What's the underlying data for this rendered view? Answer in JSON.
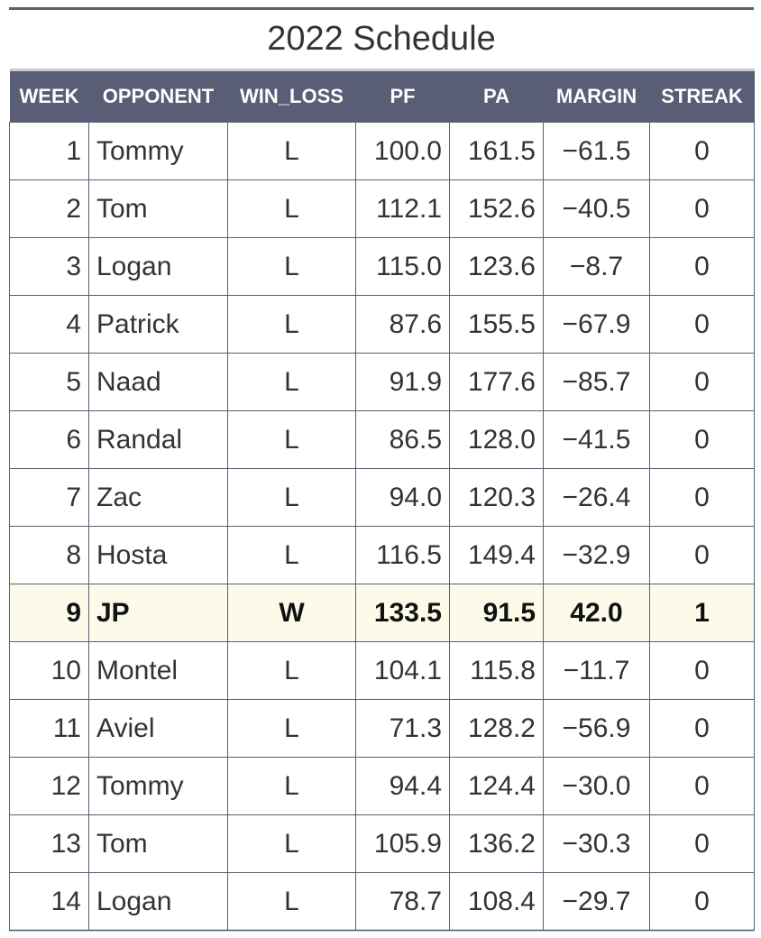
{
  "title": "2022 Schedule",
  "columns": [
    "WEEK",
    "OPPONENT",
    "WIN_LOSS",
    "PF",
    "PA",
    "MARGIN",
    "STREAK"
  ],
  "rows": [
    {
      "week": "1",
      "opponent": "Tommy",
      "win_loss": "L",
      "pf": "100.0",
      "pa": "161.5",
      "margin": "−61.5",
      "streak": "0"
    },
    {
      "week": "2",
      "opponent": "Tom",
      "win_loss": "L",
      "pf": "112.1",
      "pa": "152.6",
      "margin": "−40.5",
      "streak": "0"
    },
    {
      "week": "3",
      "opponent": "Logan",
      "win_loss": "L",
      "pf": "115.0",
      "pa": "123.6",
      "margin": "−8.7",
      "streak": "0"
    },
    {
      "week": "4",
      "opponent": "Patrick",
      "win_loss": "L",
      "pf": "87.6",
      "pa": "155.5",
      "margin": "−67.9",
      "streak": "0"
    },
    {
      "week": "5",
      "opponent": "Naad",
      "win_loss": "L",
      "pf": "91.9",
      "pa": "177.6",
      "margin": "−85.7",
      "streak": "0"
    },
    {
      "week": "6",
      "opponent": "Randal",
      "win_loss": "L",
      "pf": "86.5",
      "pa": "128.0",
      "margin": "−41.5",
      "streak": "0"
    },
    {
      "week": "7",
      "opponent": "Zac",
      "win_loss": "L",
      "pf": "94.0",
      "pa": "120.3",
      "margin": "−26.4",
      "streak": "0"
    },
    {
      "week": "8",
      "opponent": "Hosta",
      "win_loss": "L",
      "pf": "116.5",
      "pa": "149.4",
      "margin": "−32.9",
      "streak": "0"
    },
    {
      "week": "9",
      "opponent": "JP",
      "win_loss": "W",
      "pf": "133.5",
      "pa": "91.5",
      "margin": "42.0",
      "streak": "1",
      "highlight": true
    },
    {
      "week": "10",
      "opponent": "Montel",
      "win_loss": "L",
      "pf": "104.1",
      "pa": "115.8",
      "margin": "−11.7",
      "streak": "0"
    },
    {
      "week": "11",
      "opponent": "Aviel",
      "win_loss": "L",
      "pf": "71.3",
      "pa": "128.2",
      "margin": "−56.9",
      "streak": "0"
    },
    {
      "week": "12",
      "opponent": "Tommy",
      "win_loss": "L",
      "pf": "94.4",
      "pa": "124.4",
      "margin": "−30.0",
      "streak": "0"
    },
    {
      "week": "13",
      "opponent": "Tom",
      "win_loss": "L",
      "pf": "105.9",
      "pa": "136.2",
      "margin": "−30.3",
      "streak": "0"
    },
    {
      "week": "14",
      "opponent": "Logan",
      "win_loss": "L",
      "pf": "78.7",
      "pa": "108.4",
      "margin": "−29.7",
      "streak": "0"
    }
  ],
  "colors": {
    "header_bg": "#595d76",
    "header_text": "#ffffff",
    "highlight_row_bg": "#fcfbe9",
    "grid_line": "#5a6072"
  }
}
